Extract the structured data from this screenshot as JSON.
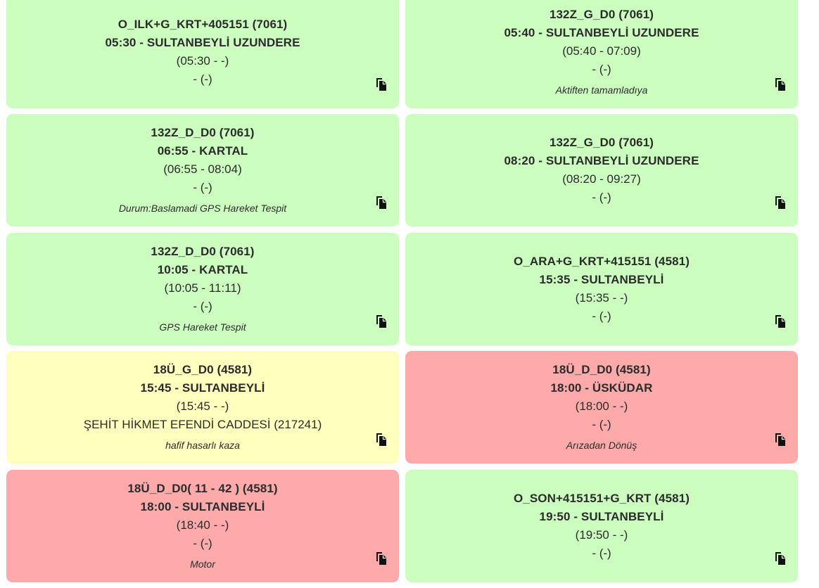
{
  "cards": [
    {
      "color": "green",
      "title": "O_ILK+G_KRT+405151 (7061)",
      "route": "05:30 - SULTANBEYLİ UZUNDERE",
      "times": "(05:30 - -)",
      "location": "- (-)",
      "note": "",
      "icon": "copy-icon"
    },
    {
      "color": "green",
      "title": "132Z_G_D0 (7061)",
      "route": "05:40 - SULTANBEYLİ UZUNDERE",
      "times": "(05:40 - 07:09)",
      "location": "- (-)",
      "note": "Aktiften tamamladıya",
      "icon": "copy-icon"
    },
    {
      "color": "green",
      "title": "132Z_D_D0 (7061)",
      "route": "06:55 - KARTAL",
      "times": "(06:55 - 08:04)",
      "location": "- (-)",
      "note": "Durum:Baslamadi GPS Hareket Tespit",
      "icon": "copy-icon"
    },
    {
      "color": "green",
      "title": "132Z_G_D0 (7061)",
      "route": "08:20 - SULTANBEYLİ UZUNDERE",
      "times": "(08:20 - 09:27)",
      "location": "- (-)",
      "note": "",
      "icon": "copy-icon"
    },
    {
      "color": "green",
      "title": "132Z_D_D0 (7061)",
      "route": "10:05 - KARTAL",
      "times": "(10:05 - 11:11)",
      "location": "- (-)",
      "note": "GPS Hareket Tespit",
      "icon": "copy-icon"
    },
    {
      "color": "green",
      "title": "O_ARA+G_KRT+415151 (4581)",
      "route": "15:35 - SULTANBEYLİ",
      "times": "(15:35 - -)",
      "location": "- (-)",
      "note": "",
      "icon": "copy-icon"
    },
    {
      "color": "yellow",
      "title": "18Ü_G_D0 (4581)",
      "route": "15:45 - SULTANBEYLİ",
      "times": "(15:45 - -)",
      "location": "ŞEHİT HİKMET EFENDİ CADDESİ (217241)",
      "note": "hafif hasarlı kaza",
      "icon": "copy-icon"
    },
    {
      "color": "red",
      "title": "18Ü_D_D0 (4581)",
      "route": "18:00 - ÜSKÜDAR",
      "times": "(18:00 - -)",
      "location": "- (-)",
      "note": "Arızadan Dönüş",
      "icon": "copy-icon"
    },
    {
      "color": "red",
      "title": "18Ü_D_D0( 11 - 42 ) (4581)",
      "route": "18:00 - SULTANBEYLİ",
      "times": "(18:40 - -)",
      "location": "- (-)",
      "note": "Motor",
      "icon": "copy-icon"
    },
    {
      "color": "green",
      "title": "O_SON+415151+G_KRT (4581)",
      "route": "19:50 - SULTANBEYLİ",
      "times": "(19:50 - -)",
      "location": "- (-)",
      "note": "",
      "icon": "copy-icon"
    }
  ]
}
